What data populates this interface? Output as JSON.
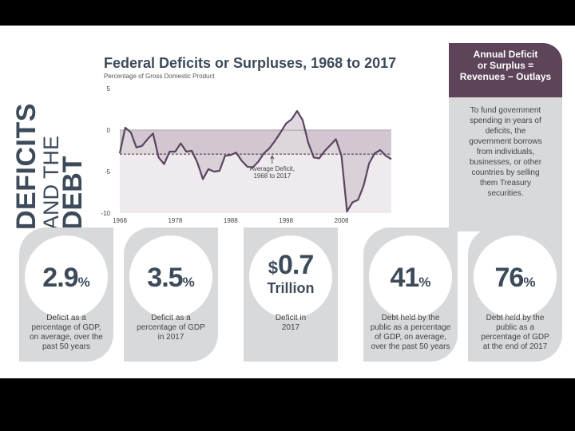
{
  "side_title": {
    "line1": "DEFICITS",
    "line2": "AND THE",
    "line3": "DEBT"
  },
  "chart_data": {
    "type": "line",
    "title": "Federal Deficits or Surpluses, 1968 to 2017",
    "subtitle": "Percentage of Gross Domestic Product",
    "x_tick_labels": [
      "1968",
      "1978",
      "1988",
      "1998",
      "2008"
    ],
    "y_tick_labels": [
      "5",
      "0",
      "-5",
      "-10"
    ],
    "ylim": [
      -10,
      5
    ],
    "xlim": [
      1968,
      2017
    ],
    "average": -2.9,
    "annotation": {
      "line1": "Average Deficit,",
      "line2": "1968 to 2017"
    },
    "series": [
      {
        "name": "Deficit or Surplus",
        "x": [
          1968,
          1969,
          1970,
          1971,
          1972,
          1973,
          1974,
          1975,
          1976,
          1977,
          1978,
          1979,
          1980,
          1981,
          1982,
          1983,
          1984,
          1985,
          1986,
          1987,
          1988,
          1989,
          1990,
          1991,
          1992,
          1993,
          1994,
          1995,
          1996,
          1997,
          1998,
          1999,
          2000,
          2001,
          2002,
          2003,
          2004,
          2005,
          2006,
          2007,
          2008,
          2009,
          2010,
          2011,
          2012,
          2013,
          2014,
          2015,
          2016,
          2017
        ],
        "values": [
          -2.8,
          0.3,
          -0.3,
          -2.1,
          -1.9,
          -1.1,
          -0.4,
          -3.3,
          -4.1,
          -2.6,
          -2.6,
          -1.6,
          -2.6,
          -2.5,
          -3.9,
          -5.9,
          -4.7,
          -5.0,
          -4.9,
          -3.1,
          -3.0,
          -2.7,
          -3.7,
          -4.4,
          -4.5,
          -3.8,
          -2.8,
          -2.2,
          -1.3,
          -0.3,
          0.8,
          1.3,
          2.3,
          1.2,
          -1.5,
          -3.3,
          -3.4,
          -2.5,
          -1.8,
          -1.1,
          -3.1,
          -9.8,
          -8.7,
          -8.4,
          -6.7,
          -4.0,
          -2.8,
          -2.4,
          -3.1,
          -3.5
        ]
      }
    ]
  },
  "sidebar": {
    "header": [
      "Annual Deficit",
      "or Surplus =",
      "Revenues − Outlays"
    ],
    "body": [
      "To fund government",
      "spending in years of",
      "deficits, the",
      "government borrows",
      "from individuals,",
      "businesses, or other",
      "countries by selling",
      "them Treasury",
      "securities."
    ]
  },
  "stats": [
    {
      "value": "2.9",
      "unit": "%",
      "desc": [
        "Deficit as a",
        "percentage of GDP,",
        "on average, over the",
        "past 50 years"
      ]
    },
    {
      "value": "3.5",
      "unit": "%",
      "desc": [
        "Deficit as a",
        "percentage of GDP",
        "in 2017"
      ]
    },
    {
      "prefix": "$",
      "value": "0.7",
      "unit": "Trillion",
      "desc": [
        "Deficit in",
        "2017"
      ]
    },
    {
      "value": "41",
      "unit": "%",
      "desc": [
        "Debt held by the",
        "public as a percentage",
        "of GDP, on average,",
        "over the past 50 years"
      ]
    },
    {
      "value": "76",
      "unit": "%",
      "desc": [
        "Debt held by the",
        "public as a",
        "percentage of GDP",
        "at the end of 2017"
      ]
    }
  ],
  "colors": {
    "navy": "#3c4a5a",
    "purple": "#5d4459",
    "line": "#5a4560",
    "fill": "#d9d1d7",
    "gray_box": "#d7d9db"
  }
}
